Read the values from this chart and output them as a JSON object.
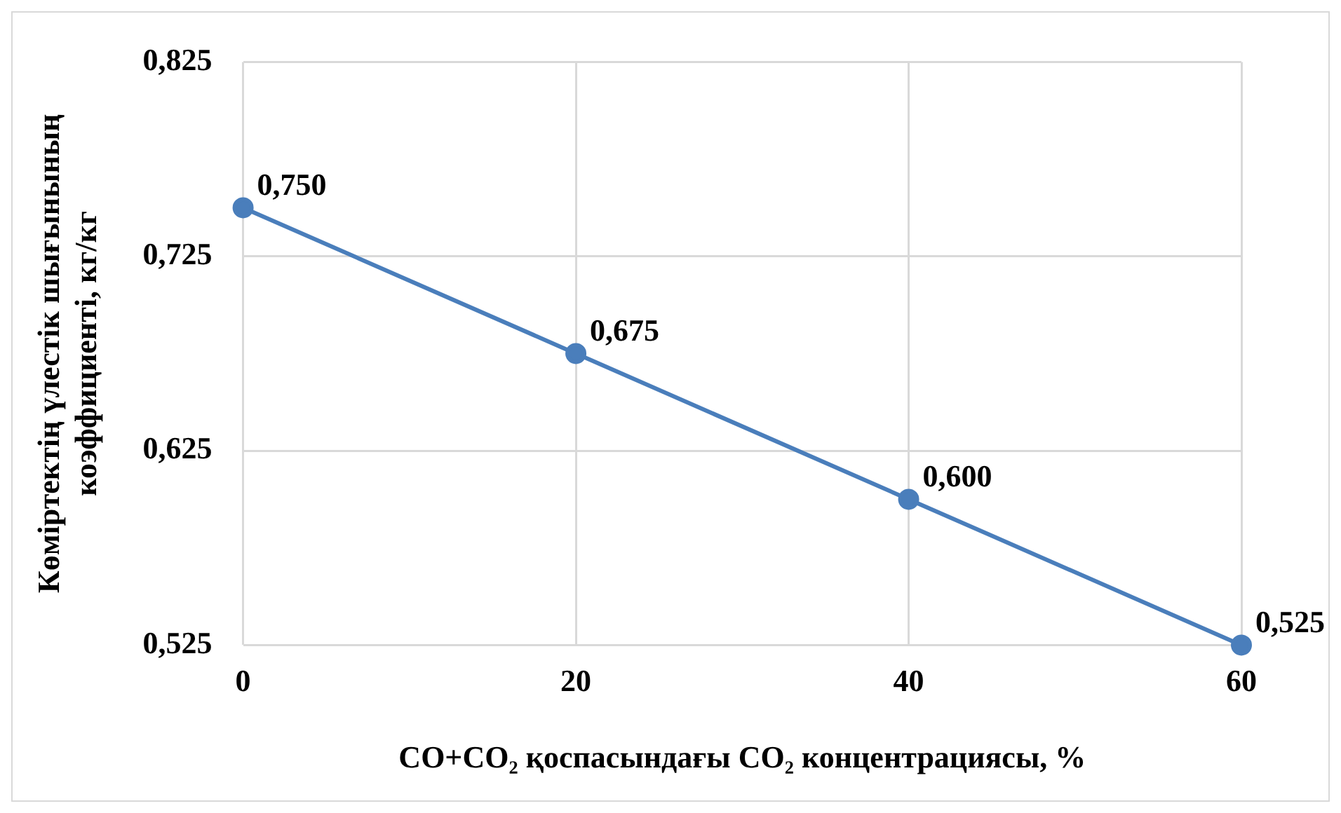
{
  "chart_data": {
    "type": "line",
    "xlabel": "CO+CO₂ қоспасындағы CO₂ концентрациясы, %",
    "ylabel": "Көміртектің үлестік шығынының коэффициенті, кг/кг",
    "x": [
      0,
      20,
      40,
      60
    ],
    "series": [
      {
        "color": "#4a7ebb",
        "values": [
          0.75,
          0.675,
          0.6,
          0.525
        ],
        "value_labels": [
          "0,750",
          "0,675",
          "0,600",
          "0,525"
        ]
      }
    ],
    "xlim": [
      0,
      60
    ],
    "xticks": [
      0,
      20,
      40,
      60
    ],
    "ylim": [
      0.525,
      0.825
    ],
    "yticks": [
      {
        "value": 0.525,
        "label": "0,525"
      },
      {
        "value": 0.625,
        "label": "0,625"
      },
      {
        "value": 0.725,
        "label": "0,725"
      },
      {
        "value": 0.825,
        "label": "0,825"
      }
    ],
    "grid": true,
    "legend": false,
    "marker": "circle",
    "line_style": "solid"
  }
}
